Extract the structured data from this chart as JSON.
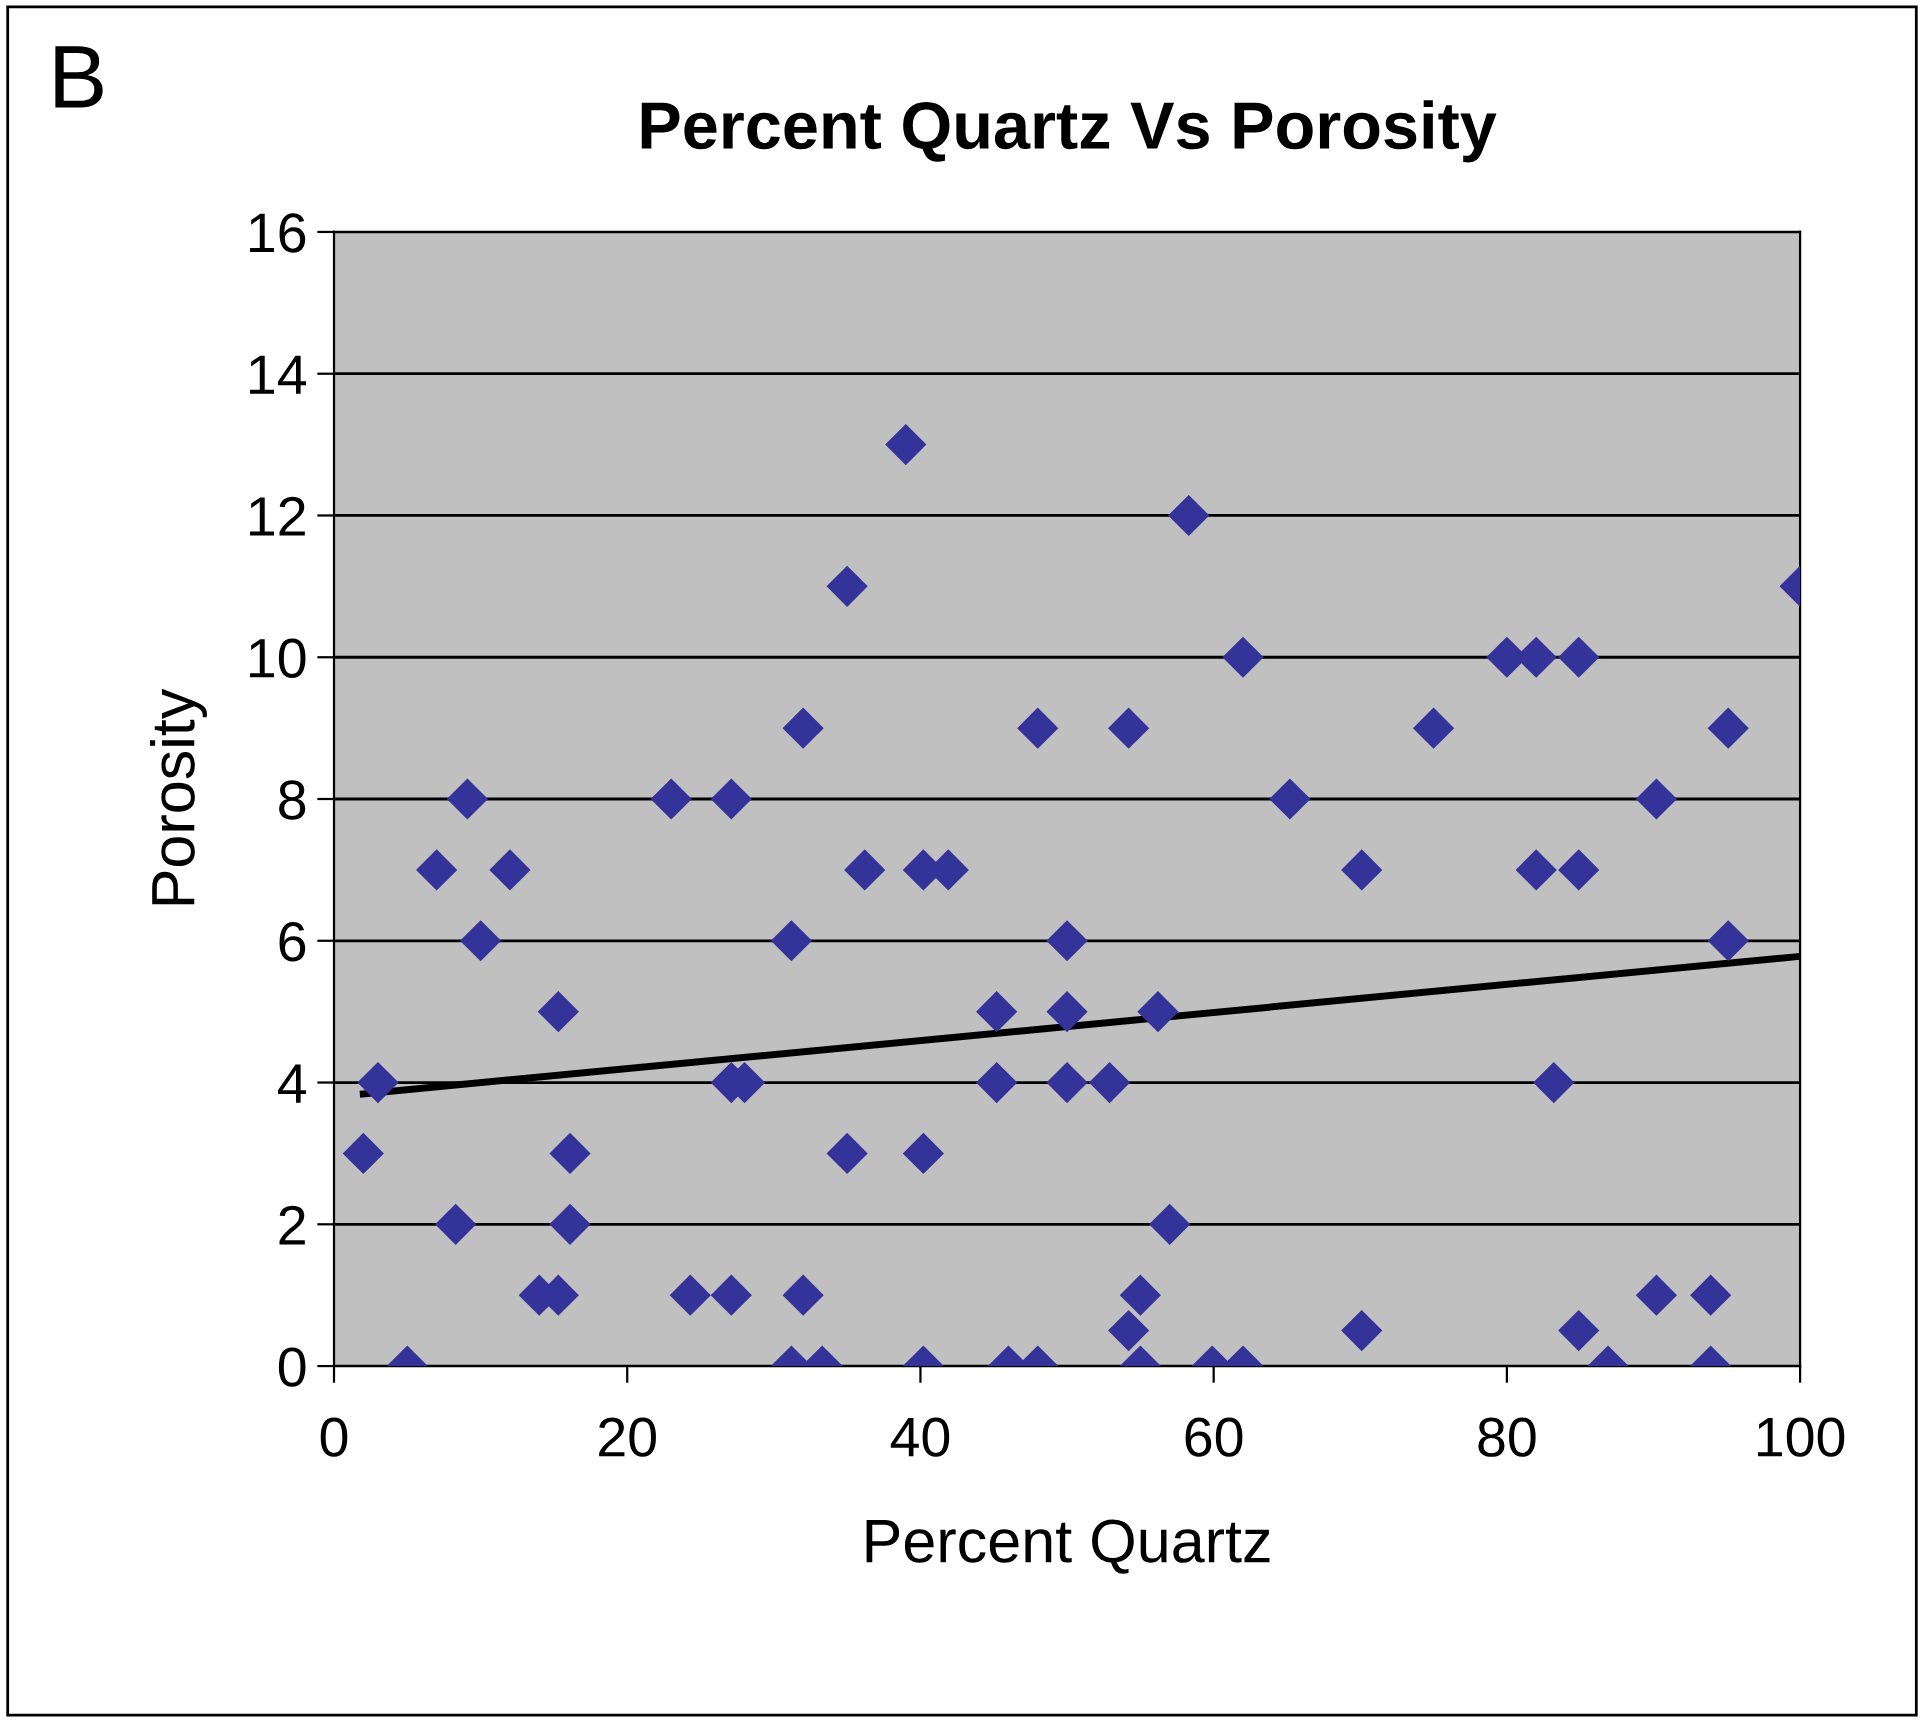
{
  "chart_data": {
    "type": "scatter",
    "title": "Percent Quartz Vs Porosity",
    "xlabel": "Percent Quartz",
    "ylabel": "Porosity",
    "annotations": [
      "B"
    ],
    "xlim": [
      0,
      100
    ],
    "xticks": [
      0,
      20,
      40,
      60,
      80,
      100
    ],
    "ylim": [
      0,
      16
    ],
    "yticks": [
      0,
      2,
      4,
      6,
      8,
      10,
      12,
      14,
      16
    ],
    "grid": "y",
    "legend": false,
    "series": [
      {
        "color": "#333399",
        "marker": "diamond",
        "x": [
          2,
          3,
          5,
          7,
          8.3,
          9.1,
          10,
          12,
          14,
          15.3,
          15.3,
          16.1,
          16.1,
          23,
          24.3,
          27.1,
          27.1,
          27.1,
          28,
          31.2,
          32,
          32,
          31.2,
          33.3,
          35,
          35,
          36.2,
          39,
          40.2,
          40.2,
          40.2,
          41.9,
          45.2,
          45.2,
          46,
          48,
          48,
          50,
          50,
          50,
          52.9,
          54.2,
          54.2,
          55,
          55,
          56.2,
          57,
          58.3,
          59.9,
          62,
          62,
          65.2,
          70.1,
          70.1,
          75,
          80,
          82,
          82,
          83.2,
          84.9,
          84.9,
          84.9,
          86.9,
          90.2,
          90.2,
          93.9,
          93.9,
          95.1,
          95.1,
          100
        ],
        "values": [
          3,
          4,
          0,
          7,
          2,
          8,
          6,
          7,
          1,
          5,
          1,
          3,
          2,
          8,
          1,
          1,
          8,
          4,
          4,
          6,
          9,
          1,
          0,
          0,
          3,
          11,
          7,
          13,
          7,
          3,
          0,
          7,
          5,
          4,
          0,
          9,
          0,
          6,
          5,
          4,
          4,
          9,
          0.5,
          1,
          0,
          5,
          2,
          12,
          0,
          10,
          0,
          8,
          7,
          0.5,
          9,
          10,
          10,
          7,
          4,
          10,
          7,
          0.5,
          0,
          8,
          1,
          1,
          0,
          6,
          9,
          11
        ]
      },
      {
        "type": "line",
        "marker": "none",
        "color": "#000000",
        "x": [
          2,
          100
        ],
        "values": [
          3.84,
          5.78
        ]
      }
    ]
  }
}
